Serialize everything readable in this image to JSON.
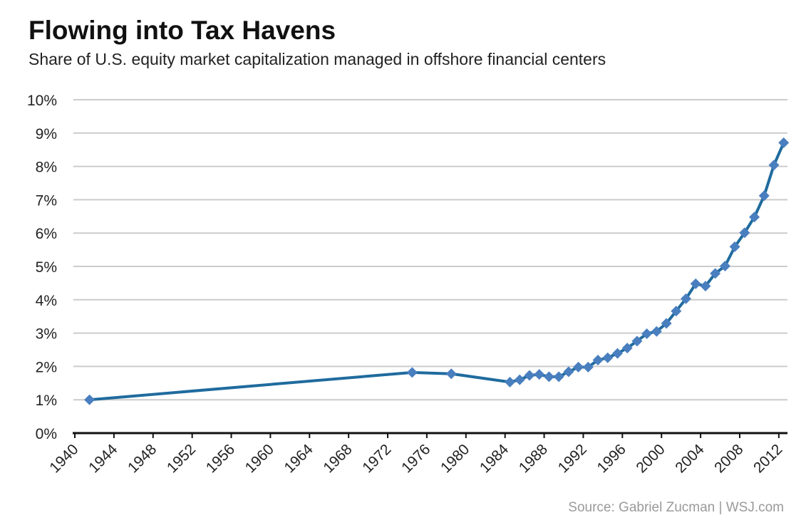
{
  "chart_data": {
    "type": "line",
    "title": "Flowing into Tax Havens",
    "subtitle": "Share of U.S. equity market capitalization managed in offshore financial centers",
    "source": "Source: Gabriel Zucman  |  WSJ.com",
    "xlabel": "",
    "ylabel": "",
    "xlim": [
      1940,
      2013
    ],
    "ylim": [
      0,
      10
    ],
    "x_ticks": [
      "1940",
      "1944",
      "1948",
      "1952",
      "1956",
      "1960",
      "1964",
      "1968",
      "1972",
      "1976",
      "1980",
      "1984",
      "1988",
      "1992",
      "1996",
      "2000",
      "2004",
      "2008",
      "2012"
    ],
    "y_ticks": [
      "0%",
      "1%",
      "2%",
      "3%",
      "4%",
      "5%",
      "6%",
      "7%",
      "8%",
      "9%",
      "10%"
    ],
    "grid": true,
    "legend": "none",
    "colors": {
      "line": "#1f6b9e",
      "marker": "#4a7fbf",
      "grid": "#cccccc",
      "axis": "#111111"
    },
    "series": [
      {
        "x": [
          1941,
          1974,
          1978,
          1984,
          1985,
          1986,
          1987,
          1988,
          1989,
          1990,
          1991,
          1992,
          1993,
          1994,
          1995,
          1996,
          1997,
          1998,
          1999,
          2000,
          2001,
          2002,
          2003,
          2004,
          2005,
          2006,
          2007,
          2008,
          2009,
          2010,
          2011,
          2012
        ],
        "values": [
          1.0,
          1.82,
          1.78,
          1.53,
          1.6,
          1.73,
          1.76,
          1.69,
          1.69,
          1.84,
          1.98,
          1.98,
          2.19,
          2.26,
          2.39,
          2.55,
          2.76,
          2.98,
          3.05,
          3.29,
          3.66,
          4.03,
          4.48,
          4.41,
          4.79,
          5.01,
          5.59,
          6.01,
          6.48,
          7.12,
          8.04,
          8.71
        ]
      }
    ]
  }
}
